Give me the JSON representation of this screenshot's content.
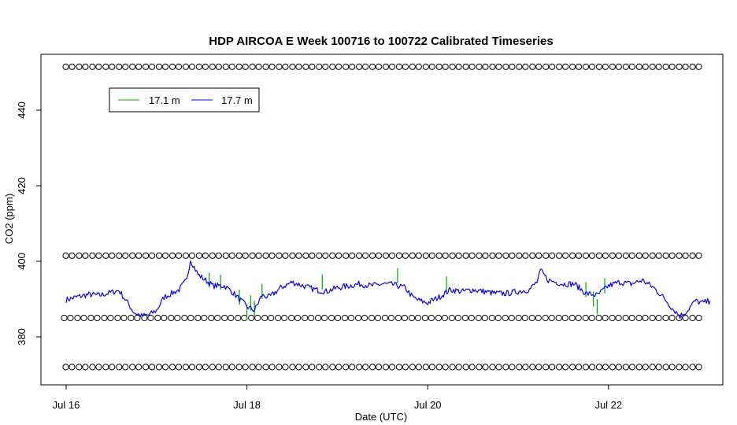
{
  "chart_data": {
    "type": "line",
    "title": "HDP AIRCOA E  Week 100716 to 100722  Calibrated Timeseries",
    "xlabel": "Date (UTC)",
    "ylabel": "CO2 (ppm)",
    "xlim": [
      "2010-07-16T00:00",
      "2010-07-23T12:00"
    ],
    "ylim": [
      368,
      453
    ],
    "x_ticks": [
      {
        "at": "2010-07-16T00:00",
        "label": "Jul 16"
      },
      {
        "at": "2010-07-18T00:00",
        "label": "Jul 18"
      },
      {
        "at": "2010-07-20T00:00",
        "label": "Jul 20"
      },
      {
        "at": "2010-07-22T00:00",
        "label": "Jul 22"
      }
    ],
    "y_ticks": [
      380,
      400,
      420,
      440
    ],
    "grid": false,
    "legend": {
      "position": "top-left",
      "entries": [
        {
          "name": "17.1 m",
          "color": "#00aa00"
        },
        {
          "name": "17.7 m",
          "color": "#0000ff"
        }
      ]
    },
    "series": [
      {
        "name": "17.7 m",
        "color": "#0000ff",
        "points": [
          [
            "2010-07-16T00:00",
            389.8
          ],
          [
            "2010-07-16T03:00",
            390.6
          ],
          [
            "2010-07-16T06:00",
            391.2
          ],
          [
            "2010-07-16T09:00",
            391.0
          ],
          [
            "2010-07-16T12:00",
            391.8
          ],
          [
            "2010-07-16T14:00",
            392.3
          ],
          [
            "2010-07-16T16:00",
            389.5
          ],
          [
            "2010-07-16T18:00",
            386.5
          ],
          [
            "2010-07-16T20:00",
            385.5
          ],
          [
            "2010-07-16T22:00",
            385.8
          ],
          [
            "2010-07-17T00:00",
            387.0
          ],
          [
            "2010-07-17T02:00",
            390.5
          ],
          [
            "2010-07-17T04:00",
            391.5
          ],
          [
            "2010-07-17T06:00",
            392.5
          ],
          [
            "2010-07-17T08:00",
            395.0
          ],
          [
            "2010-07-17T09:00",
            400.5
          ],
          [
            "2010-07-17T11:00",
            396.5
          ],
          [
            "2010-07-17T13:00",
            395.0
          ],
          [
            "2010-07-17T15:00",
            393.5
          ],
          [
            "2010-07-17T18:00",
            393.5
          ],
          [
            "2010-07-17T20:00",
            392.0
          ],
          [
            "2010-07-17T22:00",
            390.0
          ],
          [
            "2010-07-18T00:00",
            388.0
          ],
          [
            "2010-07-18T02:00",
            387.0
          ],
          [
            "2010-07-18T04:00",
            391.0
          ],
          [
            "2010-07-18T06:00",
            390.5
          ],
          [
            "2010-07-18T09:00",
            393.0
          ],
          [
            "2010-07-18T12:00",
            394.5
          ],
          [
            "2010-07-18T15:00",
            393.5
          ],
          [
            "2010-07-18T18:00",
            392.5
          ],
          [
            "2010-07-18T21:00",
            392.0
          ],
          [
            "2010-07-19T00:00",
            393.0
          ],
          [
            "2010-07-19T03:00",
            393.5
          ],
          [
            "2010-07-19T06:00",
            394.0
          ],
          [
            "2010-07-19T09:00",
            393.5
          ],
          [
            "2010-07-19T12:00",
            394.0
          ],
          [
            "2010-07-19T15:00",
            393.8
          ],
          [
            "2010-07-19T18:00",
            393.0
          ],
          [
            "2010-07-19T20:00",
            390.5
          ],
          [
            "2010-07-19T22:00",
            389.5
          ],
          [
            "2010-07-20T00:00",
            389.0
          ],
          [
            "2010-07-20T03:00",
            390.5
          ],
          [
            "2010-07-20T06:00",
            392.5
          ],
          [
            "2010-07-20T09:00",
            392.0
          ],
          [
            "2010-07-20T12:00",
            392.5
          ],
          [
            "2010-07-20T15:00",
            392.0
          ],
          [
            "2010-07-20T18:00",
            391.5
          ],
          [
            "2010-07-20T21:00",
            391.5
          ],
          [
            "2010-07-21T00:00",
            392.0
          ],
          [
            "2010-07-21T03:00",
            392.5
          ],
          [
            "2010-07-21T05:00",
            394.5
          ],
          [
            "2010-07-21T06:00",
            397.5
          ],
          [
            "2010-07-21T08:00",
            395.0
          ],
          [
            "2010-07-21T10:00",
            394.5
          ],
          [
            "2010-07-21T12:00",
            394.0
          ],
          [
            "2010-07-21T15:00",
            394.0
          ],
          [
            "2010-07-21T18:00",
            391.5
          ],
          [
            "2010-07-21T21:00",
            391.0
          ],
          [
            "2010-07-22T00:00",
            393.5
          ],
          [
            "2010-07-22T03:00",
            394.5
          ],
          [
            "2010-07-22T06:00",
            394.0
          ],
          [
            "2010-07-22T09:00",
            395.0
          ],
          [
            "2010-07-22T12:00",
            393.0
          ],
          [
            "2010-07-22T15:00",
            390.0
          ],
          [
            "2010-07-22T17:00",
            387.5
          ],
          [
            "2010-07-22T19:00",
            385.5
          ],
          [
            "2010-07-22T21:00",
            387.0
          ],
          [
            "2010-07-22T23:00",
            389.5
          ],
          [
            "2010-07-23T01:00",
            389.0
          ],
          [
            "2010-07-23T03:00",
            389.5
          ]
        ]
      },
      {
        "name": "17.1 m",
        "color": "#00aa00",
        "points": [
          [
            "2010-07-17T14:00",
            393.0
          ],
          [
            "2010-07-17T17:00",
            392.5
          ],
          [
            "2010-07-17T22:00",
            388.5
          ],
          [
            "2010-07-18T00:00",
            384.5
          ],
          [
            "2010-07-18T01:00",
            387.0
          ],
          [
            "2010-07-18T02:00",
            385.5
          ],
          [
            "2010-07-18T04:00",
            390.0
          ],
          [
            "2010-07-18T20:00",
            392.5
          ],
          [
            "2010-07-19T16:00",
            394.2
          ],
          [
            "2010-07-20T05:00",
            392.0
          ],
          [
            "2010-07-21T18:00",
            390.5
          ],
          [
            "2010-07-21T20:00",
            388.0
          ],
          [
            "2010-07-21T21:00",
            386.0
          ],
          [
            "2010-07-21T23:00",
            391.5
          ]
        ]
      },
      {
        "name": "",
        "color": "#000000",
        "marker": "circle",
        "points": [
          [
            "2010-07-16T00:00",
            372.0
          ],
          [
            "2010-07-16T00:00",
            385.0
          ],
          [
            "2010-07-16T00:00",
            401.5
          ],
          [
            "2010-07-16T00:00",
            451.5
          ]
        ]
      }
    ],
    "calibration_levels": [
      372.0,
      385.0,
      401.5,
      451.5
    ]
  }
}
